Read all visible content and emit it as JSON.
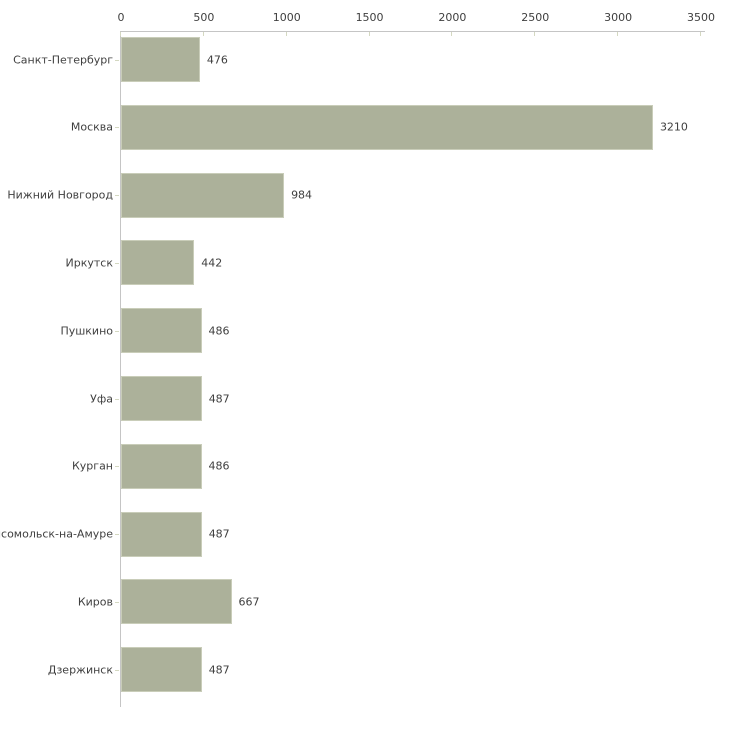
{
  "chart_data": {
    "type": "bar",
    "orientation": "horizontal",
    "title": "",
    "xlabel": "",
    "ylabel": "",
    "categories": [
      "Санкт-Петербург",
      "Москва",
      "Нижний Новгород",
      "Иркутск",
      "Пушкино",
      "Уфа",
      "Курган",
      "мсомольск-на-Амуре",
      "Киров",
      "Дзержинск"
    ],
    "values": [
      476,
      3210,
      984,
      442,
      486,
      487,
      486,
      487,
      667,
      487
    ],
    "value_labels": [
      "476",
      "3210",
      "984",
      "442",
      "486",
      "487",
      "486",
      "487",
      "667",
      "487"
    ],
    "xlim": [
      0,
      3500
    ],
    "x_ticks": [
      0,
      500,
      1000,
      1500,
      2000,
      2500,
      3000,
      3500
    ],
    "x_tick_labels": [
      "0",
      "500",
      "1000",
      "1500",
      "2000",
      "2500",
      "3000",
      "3500"
    ],
    "axis_position": "top",
    "grid": false,
    "legend": null,
    "colors": {
      "bar_fill": "#acb19a",
      "bar_border": "#c9cdb9",
      "axis_line": "#c5c5c5",
      "tick_mark": "#d4d8c1",
      "text": "#3f3f3f",
      "background": "#ffffff"
    }
  }
}
